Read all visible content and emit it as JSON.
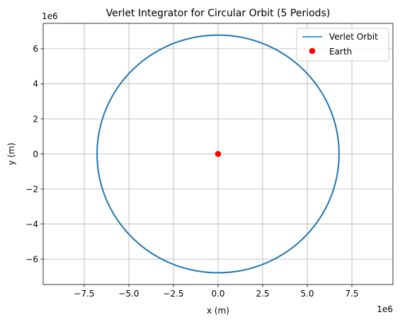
{
  "chart_data": {
    "type": "line",
    "title": "Verlet Integrator for Circular Orbit (5 Periods)",
    "xlabel": "x (m)",
    "ylabel": "y (m)",
    "x_offset_label": "1e6",
    "y_offset_label": "1e6",
    "xlim": [
      -9.8,
      9.8
    ],
    "ylim": [
      -7.45,
      7.45
    ],
    "x_scale": 1000000,
    "xticks": [
      -7.5,
      -5.0,
      -2.5,
      0.0,
      2.5,
      5.0,
      7.5
    ],
    "xtick_labels": [
      "−7.5",
      "−5.0",
      "−2.5",
      "0.0",
      "2.5",
      "5.0",
      "7.5"
    ],
    "yticks": [
      -6,
      -4,
      -2,
      0,
      2,
      4,
      6
    ],
    "ytick_labels": [
      "−6",
      "−4",
      "−2",
      "0",
      "2",
      "4",
      "6"
    ],
    "grid": true,
    "legend_position": "top-right",
    "series": [
      {
        "name": "Verlet Orbit",
        "kind": "line",
        "color": "#1f77b4",
        "shape": "circle",
        "center": [
          0,
          0
        ],
        "radius": 6.78
      },
      {
        "name": "Earth",
        "kind": "marker",
        "color": "#ff0000",
        "x": [
          0
        ],
        "y": [
          0
        ]
      }
    ]
  }
}
